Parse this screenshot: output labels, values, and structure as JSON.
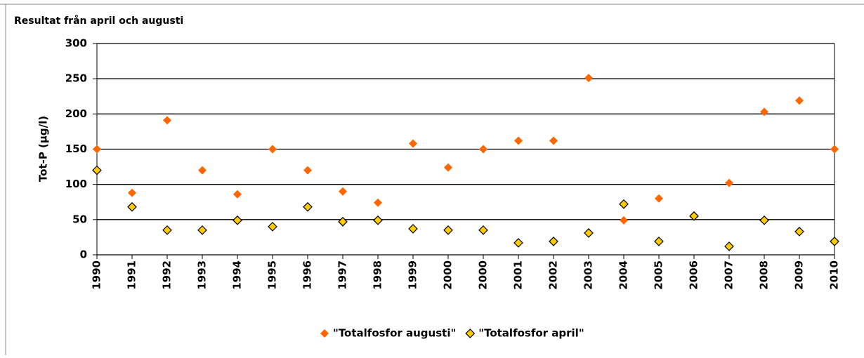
{
  "chart_data": {
    "type": "scatter",
    "title": "Resultat från april och augusti",
    "y_label": "Tot-P (µg/l)",
    "categories": [
      "1990",
      "1991",
      "1992",
      "1993",
      "1994",
      "1995",
      "1996",
      "1997",
      "1998",
      "1999",
      "2000",
      "2000",
      "2001",
      "2002",
      "2003",
      "2004",
      "2005",
      "2006",
      "2007",
      "2008",
      "2009",
      "2010"
    ],
    "series": [
      {
        "name": "\"Totalfosfor augusti\"",
        "color": "#ff6600",
        "values": [
          150,
          88,
          191,
          120,
          86,
          150,
          120,
          90,
          74,
          158,
          124,
          150,
          162,
          162,
          251,
          49,
          80,
          56,
          102,
          203,
          219,
          150
        ]
      },
      {
        "name": "\"Totalfosfor april\"",
        "color": "#ffcc00",
        "values": [
          120,
          68,
          35,
          35,
          49,
          40,
          68,
          47,
          49,
          37,
          35,
          35,
          17,
          19,
          31,
          72,
          19,
          55,
          12,
          49,
          33,
          19
        ]
      }
    ],
    "ylim": [
      0,
      300
    ],
    "yticks": [
      0,
      50,
      100,
      150,
      200,
      250,
      300
    ],
    "grid": true,
    "legend": "bottom"
  }
}
